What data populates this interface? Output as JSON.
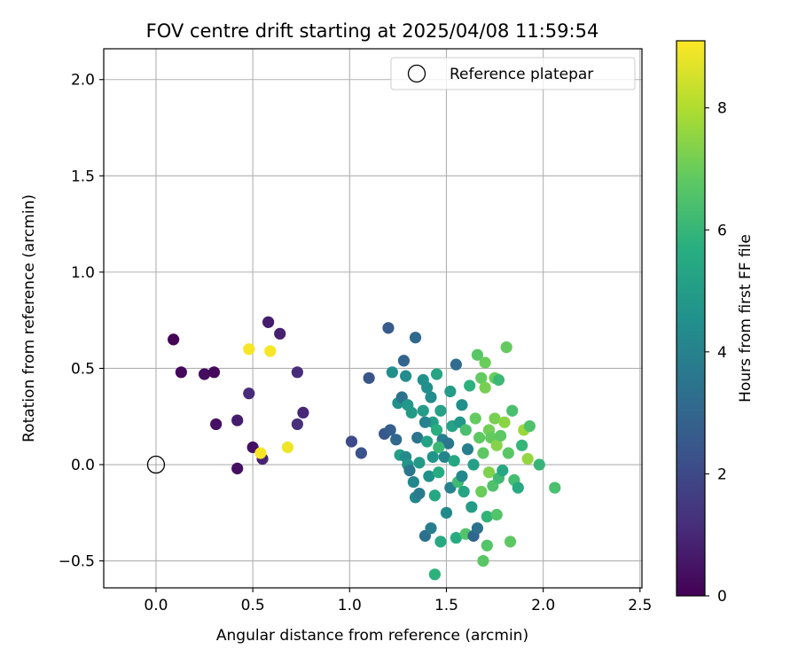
{
  "chart_data": {
    "type": "scatter",
    "title": "FOV centre drift starting at 2025/04/08 11:59:54",
    "xlabel": "Angular distance from reference (arcmin)",
    "ylabel": "Rotation from reference (arcmin)",
    "xlim": [
      -0.27,
      2.51
    ],
    "ylim": [
      -0.64,
      2.16
    ],
    "xticks": [
      0.0,
      0.5,
      1.0,
      1.5,
      2.0,
      2.5
    ],
    "xtick_labels": [
      "0.0",
      "0.5",
      "1.0",
      "1.5",
      "2.0",
      "2.5"
    ],
    "yticks": [
      -0.5,
      0.0,
      0.5,
      1.0,
      1.5,
      2.0
    ],
    "ytick_labels": [
      "−0.5",
      "0.0",
      "0.5",
      "1.0",
      "1.5",
      "2.0"
    ],
    "grid": true,
    "legend": {
      "label": "Reference platepar",
      "location": "upper right"
    },
    "reference_point": {
      "x": 0.0,
      "y": 0.0
    },
    "colorbar": {
      "label": "Hours from first FF file",
      "colormap": "viridis",
      "min": 0,
      "max": 9.1,
      "ticks": [
        0,
        2,
        4,
        6,
        8
      ],
      "tick_labels": [
        "0",
        "2",
        "4",
        "6",
        "8"
      ]
    },
    "points": [
      {
        "x": 0.09,
        "y": 0.65,
        "t": 0.1
      },
      {
        "x": 0.13,
        "y": 0.48,
        "t": 0.2
      },
      {
        "x": 0.25,
        "y": 0.47,
        "t": 0.3
      },
      {
        "x": 0.3,
        "y": 0.48,
        "t": 0.2
      },
      {
        "x": 0.31,
        "y": 0.21,
        "t": 0.4
      },
      {
        "x": 0.42,
        "y": 0.23,
        "t": 0.7
      },
      {
        "x": 0.42,
        "y": -0.02,
        "t": 0.4
      },
      {
        "x": 0.48,
        "y": 0.37,
        "t": 1.1
      },
      {
        "x": 0.5,
        "y": 0.09,
        "t": 0.4
      },
      {
        "x": 0.55,
        "y": 0.03,
        "t": 0.9
      },
      {
        "x": 0.58,
        "y": 0.74,
        "t": 0.7
      },
      {
        "x": 0.64,
        "y": 0.68,
        "t": 0.8
      },
      {
        "x": 0.73,
        "y": 0.48,
        "t": 1.1
      },
      {
        "x": 0.73,
        "y": 0.21,
        "t": 1.2
      },
      {
        "x": 0.76,
        "y": 0.27,
        "t": 1.0
      },
      {
        "x": 0.48,
        "y": 0.6,
        "t": 9.0
      },
      {
        "x": 0.59,
        "y": 0.59,
        "t": 9.0
      },
      {
        "x": 0.54,
        "y": 0.06,
        "t": 9.0
      },
      {
        "x": 0.68,
        "y": 0.09,
        "t": 8.9
      },
      {
        "x": 1.01,
        "y": 0.12,
        "t": 2.1
      },
      {
        "x": 1.06,
        "y": 0.06,
        "t": 2.3
      },
      {
        "x": 1.1,
        "y": 0.45,
        "t": 2.4
      },
      {
        "x": 1.18,
        "y": 0.16,
        "t": 2.5
      },
      {
        "x": 1.2,
        "y": 0.71,
        "t": 2.6
      },
      {
        "x": 1.21,
        "y": 0.18,
        "t": 2.7
      },
      {
        "x": 1.22,
        "y": 0.48,
        "t": 4.5
      },
      {
        "x": 1.24,
        "y": 0.13,
        "t": 3.0
      },
      {
        "x": 1.25,
        "y": 0.32,
        "t": 4.6
      },
      {
        "x": 1.26,
        "y": 0.05,
        "t": 5.1
      },
      {
        "x": 1.27,
        "y": 0.35,
        "t": 3.4
      },
      {
        "x": 1.28,
        "y": 0.54,
        "t": 2.9
      },
      {
        "x": 1.29,
        "y": 0.46,
        "t": 4.4
      },
      {
        "x": 1.29,
        "y": 0.04,
        "t": 4.3
      },
      {
        "x": 1.3,
        "y": 0.31,
        "t": 4.8
      },
      {
        "x": 1.3,
        "y": 0.0,
        "t": 4.7
      },
      {
        "x": 1.31,
        "y": -0.03,
        "t": 3.6
      },
      {
        "x": 1.32,
        "y": 0.27,
        "t": 4.9
      },
      {
        "x": 1.33,
        "y": -0.09,
        "t": 4.2
      },
      {
        "x": 1.34,
        "y": -0.17,
        "t": 4.1
      },
      {
        "x": 1.34,
        "y": 0.66,
        "t": 3.1
      },
      {
        "x": 1.35,
        "y": 0.14,
        "t": 3.5
      },
      {
        "x": 1.36,
        "y": 0.01,
        "t": 4.9
      },
      {
        "x": 1.36,
        "y": -0.15,
        "t": 3.7
      },
      {
        "x": 1.38,
        "y": 0.44,
        "t": 4.6
      },
      {
        "x": 1.38,
        "y": 0.28,
        "t": 5.0
      },
      {
        "x": 1.39,
        "y": -0.37,
        "t": 3.3
      },
      {
        "x": 1.4,
        "y": 0.4,
        "t": 4.5
      },
      {
        "x": 1.4,
        "y": 0.12,
        "t": 5.2
      },
      {
        "x": 1.41,
        "y": -0.06,
        "t": 4.6
      },
      {
        "x": 1.42,
        "y": 0.35,
        "t": 4.4
      },
      {
        "x": 1.42,
        "y": -0.33,
        "t": 3.8
      },
      {
        "x": 1.43,
        "y": 0.22,
        "t": 5.1
      },
      {
        "x": 1.43,
        "y": 0.04,
        "t": 4.7
      },
      {
        "x": 1.44,
        "y": -0.16,
        "t": 5.4
      },
      {
        "x": 1.45,
        "y": 0.47,
        "t": 5.3
      },
      {
        "x": 1.45,
        "y": 0.18,
        "t": 5.7
      },
      {
        "x": 1.46,
        "y": -0.04,
        "t": 5.6
      },
      {
        "x": 1.47,
        "y": 0.28,
        "t": 5.2
      },
      {
        "x": 1.47,
        "y": -0.4,
        "t": 5.5
      },
      {
        "x": 1.48,
        "y": 0.13,
        "t": 3.9
      },
      {
        "x": 1.49,
        "y": 0.04,
        "t": 4.1
      },
      {
        "x": 1.5,
        "y": -0.25,
        "t": 4.3
      },
      {
        "x": 1.51,
        "y": 0.11,
        "t": 3.6
      },
      {
        "x": 1.52,
        "y": -0.12,
        "t": 4.0
      },
      {
        "x": 1.53,
        "y": 0.2,
        "t": 5.2
      },
      {
        "x": 1.54,
        "y": 0.02,
        "t": 5.4
      },
      {
        "x": 1.55,
        "y": 0.52,
        "t": 3.2
      },
      {
        "x": 1.55,
        "y": -0.38,
        "t": 5.6
      },
      {
        "x": 1.56,
        "y": -0.09,
        "t": 6.2
      },
      {
        "x": 1.57,
        "y": 0.22,
        "t": 4.8
      },
      {
        "x": 1.58,
        "y": -0.06,
        "t": 4.2
      },
      {
        "x": 1.58,
        "y": 0.31,
        "t": 4.5
      },
      {
        "x": 1.59,
        "y": -0.14,
        "t": 5.3
      },
      {
        "x": 1.6,
        "y": 0.18,
        "t": 6.4
      },
      {
        "x": 1.6,
        "y": -0.36,
        "t": 6.6
      },
      {
        "x": 1.61,
        "y": 0.08,
        "t": 3.9
      },
      {
        "x": 1.62,
        "y": 0.41,
        "t": 5.8
      },
      {
        "x": 1.63,
        "y": -0.22,
        "t": 5.0
      },
      {
        "x": 1.64,
        "y": 0.0,
        "t": 5.1
      },
      {
        "x": 1.64,
        "y": -0.37,
        "t": 3.0
      },
      {
        "x": 1.65,
        "y": 0.24,
        "t": 6.9
      },
      {
        "x": 1.66,
        "y": 0.57,
        "t": 6.7
      },
      {
        "x": 1.66,
        "y": -0.33,
        "t": 3.4
      },
      {
        "x": 1.67,
        "y": 0.14,
        "t": 6.8
      },
      {
        "x": 1.68,
        "y": 0.45,
        "t": 6.9
      },
      {
        "x": 1.68,
        "y": -0.14,
        "t": 7.0
      },
      {
        "x": 1.69,
        "y": 0.06,
        "t": 6.8
      },
      {
        "x": 1.69,
        "y": -0.5,
        "t": 6.7
      },
      {
        "x": 1.7,
        "y": 0.4,
        "t": 7.2
      },
      {
        "x": 1.7,
        "y": 0.53,
        "t": 7.0
      },
      {
        "x": 1.71,
        "y": -0.27,
        "t": 5.9
      },
      {
        "x": 1.71,
        "y": -0.42,
        "t": 6.6
      },
      {
        "x": 1.72,
        "y": 0.18,
        "t": 7.1
      },
      {
        "x": 1.72,
        "y": -0.04,
        "t": 7.3
      },
      {
        "x": 1.73,
        "y": 0.14,
        "t": 6.9
      },
      {
        "x": 1.74,
        "y": -0.11,
        "t": 6.5
      },
      {
        "x": 1.75,
        "y": 0.45,
        "t": 7.0
      },
      {
        "x": 1.75,
        "y": 0.24,
        "t": 7.2
      },
      {
        "x": 1.76,
        "y": 0.1,
        "t": 7.4
      },
      {
        "x": 1.76,
        "y": -0.26,
        "t": 6.6
      },
      {
        "x": 1.77,
        "y": 0.44,
        "t": 6.1
      },
      {
        "x": 1.77,
        "y": -0.07,
        "t": 6.2
      },
      {
        "x": 1.78,
        "y": 0.15,
        "t": 6.8
      },
      {
        "x": 1.79,
        "y": -0.03,
        "t": 5.4
      },
      {
        "x": 1.8,
        "y": 0.22,
        "t": 7.5
      },
      {
        "x": 1.81,
        "y": 0.61,
        "t": 6.9
      },
      {
        "x": 1.82,
        "y": 0.06,
        "t": 6.7
      },
      {
        "x": 1.83,
        "y": -0.4,
        "t": 6.8
      },
      {
        "x": 1.84,
        "y": 0.28,
        "t": 6.4
      },
      {
        "x": 1.85,
        "y": -0.08,
        "t": 6.3
      },
      {
        "x": 1.87,
        "y": -0.12,
        "t": 5.5
      },
      {
        "x": 1.89,
        "y": 0.1,
        "t": 6.0
      },
      {
        "x": 1.9,
        "y": 0.18,
        "t": 7.7
      },
      {
        "x": 1.92,
        "y": 0.03,
        "t": 7.6
      },
      {
        "x": 1.93,
        "y": 0.2,
        "t": 6.5
      },
      {
        "x": 1.98,
        "y": 0.0,
        "t": 6.0
      },
      {
        "x": 2.06,
        "y": -0.12,
        "t": 6.4
      },
      {
        "x": 1.44,
        "y": -0.57,
        "t": 5.8
      },
      {
        "x": 1.46,
        "y": 0.09,
        "t": 6.1
      },
      {
        "x": 1.52,
        "y": 0.38,
        "t": 5.0
      },
      {
        "x": 1.39,
        "y": 0.22,
        "t": 4.0
      }
    ]
  }
}
